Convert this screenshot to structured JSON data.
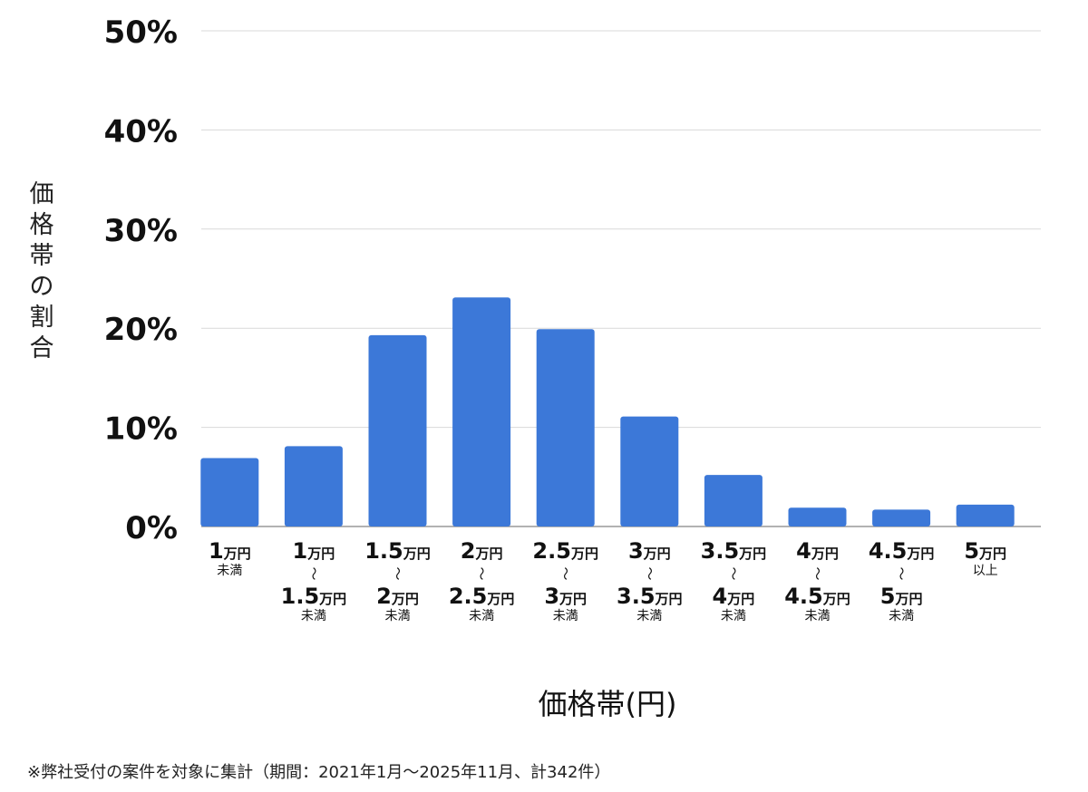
{
  "chart_data": {
    "type": "bar",
    "xlabel": "価格帯(円)",
    "ylabel": "価格帯の割合",
    "ylim": [
      0,
      50
    ],
    "yticks": [
      "0%",
      "10%",
      "20%",
      "30%",
      "40%",
      "50%"
    ],
    "grid": true,
    "bar_color": "#3c78d8",
    "categories": [
      {
        "lines": [
          {
            "big": "1",
            "small": "万円"
          },
          {
            "note": "未満"
          }
        ]
      },
      {
        "lines": [
          {
            "big": "1",
            "small": "万円"
          },
          {
            "tilde": "〜"
          },
          {
            "big": "1.5",
            "small": "万円"
          },
          {
            "note": "未満"
          }
        ]
      },
      {
        "lines": [
          {
            "big": "1.5",
            "small": "万円"
          },
          {
            "tilde": "〜"
          },
          {
            "big": "2",
            "small": "万円"
          },
          {
            "note": "未満"
          }
        ]
      },
      {
        "lines": [
          {
            "big": "2",
            "small": "万円"
          },
          {
            "tilde": "〜"
          },
          {
            "big": "2.5",
            "small": "万円"
          },
          {
            "note": "未満"
          }
        ]
      },
      {
        "lines": [
          {
            "big": "2.5",
            "small": "万円"
          },
          {
            "tilde": "〜"
          },
          {
            "big": "3",
            "small": "万円"
          },
          {
            "note": "未満"
          }
        ]
      },
      {
        "lines": [
          {
            "big": "3",
            "small": "万円"
          },
          {
            "tilde": "〜"
          },
          {
            "big": "3.5",
            "small": "万円"
          },
          {
            "note": "未満"
          }
        ]
      },
      {
        "lines": [
          {
            "big": "3.5",
            "small": "万円"
          },
          {
            "tilde": "〜"
          },
          {
            "big": "4",
            "small": "万円"
          },
          {
            "note": "未満"
          }
        ]
      },
      {
        "lines": [
          {
            "big": "4",
            "small": "万円"
          },
          {
            "tilde": "〜"
          },
          {
            "big": "4.5",
            "small": "万円"
          },
          {
            "note": "未満"
          }
        ]
      },
      {
        "lines": [
          {
            "big": "4.5",
            "small": "万円"
          },
          {
            "tilde": "〜"
          },
          {
            "big": "5",
            "small": "万円"
          },
          {
            "note": "未満"
          }
        ]
      },
      {
        "lines": [
          {
            "big": "5",
            "small": "万円"
          },
          {
            "note": "以上"
          }
        ]
      }
    ],
    "values": [
      6.9,
      8.1,
      19.3,
      23.1,
      19.9,
      11.1,
      5.2,
      1.9,
      1.7,
      2.2
    ]
  },
  "footnote": "※弊社受付の案件を対象に集計（期間：2021年1月〜2025年11月、計342件）"
}
